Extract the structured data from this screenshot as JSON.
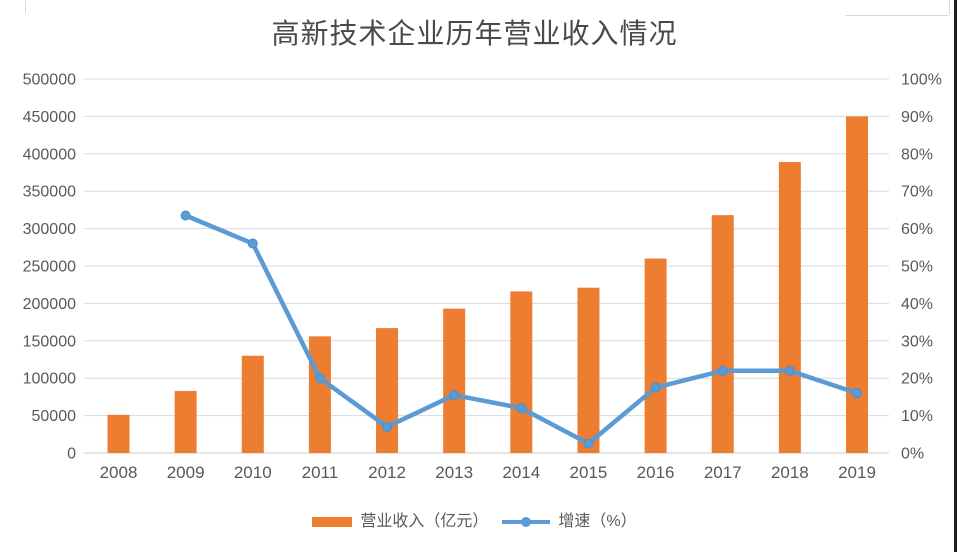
{
  "chart_data": {
    "type": "combo-bar-line",
    "title": "高新技术企业历年营业收入情况",
    "categories": [
      "2008",
      "2009",
      "2010",
      "2011",
      "2012",
      "2013",
      "2014",
      "2015",
      "2016",
      "2017",
      "2018",
      "2019"
    ],
    "series": [
      {
        "name": "营业收入（亿元）",
        "type": "bar",
        "axis": "left",
        "color": "#ED7D31",
        "values": [
          51000,
          83000,
          130000,
          156000,
          167000,
          193000,
          216000,
          221000,
          260000,
          318000,
          389000,
          450000
        ]
      },
      {
        "name": "增速（%）",
        "type": "line",
        "axis": "right",
        "color": "#5B9BD5",
        "marker": "circle",
        "values": [
          null,
          63.5,
          56,
          20,
          7,
          15.5,
          12,
          2.5,
          17.5,
          22,
          22,
          16
        ]
      }
    ],
    "left_axis": {
      "min": 0,
      "max": 500000,
      "step": 50000,
      "tick_labels_top_to_bottom": [
        "500000",
        "450000",
        "400000",
        "350000",
        "300000",
        "250000",
        "200000",
        "150000",
        "100000",
        "50000",
        "0"
      ]
    },
    "right_axis": {
      "min": 0,
      "max": 100,
      "step": 10,
      "tick_labels_top_to_bottom": [
        "100%",
        "90%",
        "80%",
        "70%",
        "60%",
        "50%",
        "40%",
        "30%",
        "20%",
        "10%",
        "0%"
      ]
    },
    "grid": true,
    "legend_position": "bottom",
    "colors": {
      "bar": "#ED7D31",
      "line": "#5B9BD5",
      "gridline": "#D9D9D9",
      "axis_line": "#C9C9C9",
      "tick_text": "#595959",
      "title_text": "#4a4a4a"
    }
  }
}
